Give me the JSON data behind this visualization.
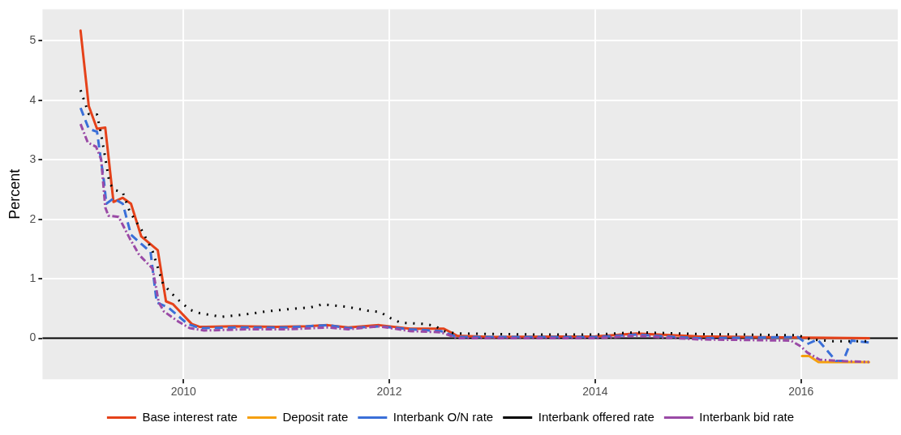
{
  "chart_data": {
    "type": "line",
    "ylabel": "Percent",
    "xlim": [
      2008.63,
      2016.94
    ],
    "xticks": [
      2010,
      2012,
      2014,
      2016
    ],
    "ylim": [
      -0.69,
      5.53
    ],
    "yticks": [
      0,
      1,
      2,
      3,
      4,
      5
    ],
    "grid": true,
    "legend": "bottom",
    "marker": "none",
    "ref_lines": [
      {
        "axis": "y",
        "value": 0,
        "color": "#000000"
      }
    ],
    "series": [
      {
        "name": "Base interest rate",
        "color": "#e5421a",
        "line_style": "solid",
        "x": [
          2009.0,
          2009.08,
          2009.16,
          2009.24,
          2009.32,
          2009.41,
          2009.49,
          2009.59,
          2009.75,
          2009.83,
          2009.9,
          2010.08,
          2010.16,
          2010.5,
          2010.9,
          2011.2,
          2011.4,
          2011.6,
          2011.9,
          2012.2,
          2012.53,
          2012.66,
          2013,
          2014,
          2014.4,
          2015,
          2016,
          2016.66
        ],
        "values": [
          5.17,
          3.9,
          3.52,
          3.54,
          2.29,
          2.36,
          2.26,
          1.71,
          1.48,
          0.62,
          0.57,
          0.24,
          0.19,
          0.2,
          0.19,
          0.2,
          0.22,
          0.18,
          0.22,
          0.16,
          0.16,
          0.04,
          0.02,
          0.03,
          0.08,
          0.03,
          0.01,
          0.0
        ]
      },
      {
        "name": "Deposit rate",
        "color": "#f5a00f",
        "line_style": "solid",
        "x": [
          2016.01,
          2016.08,
          2016.17,
          2016.66
        ],
        "values": [
          -0.3,
          -0.3,
          -0.4,
          -0.4
        ]
      },
      {
        "name": "Interbank O/N rate",
        "color": "#3a6fd8",
        "line_style": "dashed",
        "x": [
          2009.0,
          2009.08,
          2009.16,
          2009.23,
          2009.25,
          2009.32,
          2009.41,
          2009.49,
          2009.6,
          2009.68,
          2009.74,
          2009.85,
          2010.04,
          2010.16,
          2010.5,
          2011.0,
          2011.4,
          2011.6,
          2011.9,
          2012.2,
          2012.5,
          2012.66,
          2014,
          2014.4,
          2015,
          2015.97,
          2016.06,
          2016.16,
          2016.34,
          2016.41,
          2016.49,
          2016.66
        ],
        "values": [
          3.87,
          3.52,
          3.47,
          2.6,
          2.26,
          2.35,
          2.26,
          1.74,
          1.57,
          1.45,
          0.6,
          0.52,
          0.24,
          0.17,
          0.18,
          0.18,
          0.22,
          0.17,
          0.2,
          0.15,
          0.12,
          0.02,
          0.02,
          0.06,
          0.0,
          0.02,
          -0.1,
          -0.02,
          -0.38,
          -0.38,
          -0.04,
          -0.07
        ]
      },
      {
        "name": "Interbank offered rate",
        "color": "#000000",
        "line_style": "dotted",
        "x": [
          2009.0,
          2009.08,
          2009.16,
          2009.2,
          2009.24,
          2009.28,
          2009.32,
          2009.41,
          2009.48,
          2009.6,
          2009.7,
          2009.8,
          2009.88,
          2009.96,
          2010.06,
          2010.16,
          2010.37,
          2010.6,
          2010.8,
          2011.03,
          2011.24,
          2011.35,
          2011.58,
          2011.8,
          2011.91,
          2012.01,
          2012.11,
          2012.33,
          2012.44,
          2012.53,
          2012.64,
          2013.5,
          2014,
          2014.4,
          2015,
          2015.97,
          2016.1,
          2016.3,
          2016.66
        ],
        "values": [
          4.17,
          3.77,
          3.76,
          3.43,
          3.03,
          2.62,
          2.5,
          2.45,
          2.12,
          1.8,
          1.46,
          0.92,
          0.76,
          0.63,
          0.48,
          0.42,
          0.36,
          0.4,
          0.45,
          0.49,
          0.52,
          0.57,
          0.53,
          0.46,
          0.44,
          0.34,
          0.26,
          0.24,
          0.21,
          0.12,
          0.08,
          0.06,
          0.06,
          0.1,
          0.07,
          0.05,
          -0.02,
          -0.05,
          -0.05
        ]
      },
      {
        "name": "Interbank bid rate",
        "color": "#9a4aa6",
        "line_style": "dashdot",
        "x": [
          2009.0,
          2009.07,
          2009.15,
          2009.2,
          2009.24,
          2009.27,
          2009.37,
          2009.48,
          2009.57,
          2009.7,
          2009.76,
          2009.81,
          2009.95,
          2010.06,
          2010.2,
          2010.6,
          2011.0,
          2011.4,
          2011.6,
          2011.9,
          2012.2,
          2012.5,
          2012.66,
          2014,
          2014.4,
          2015,
          2015.9,
          2016.0,
          2016.06,
          2016.18,
          2016.34,
          2016.66
        ],
        "values": [
          3.6,
          3.29,
          3.22,
          3.01,
          2.2,
          2.06,
          2.04,
          1.67,
          1.4,
          1.17,
          0.6,
          0.45,
          0.28,
          0.17,
          0.13,
          0.15,
          0.15,
          0.18,
          0.15,
          0.2,
          0.12,
          0.1,
          0.0,
          0.0,
          0.04,
          -0.02,
          -0.04,
          -0.14,
          -0.24,
          -0.36,
          -0.38,
          -0.4
        ]
      }
    ]
  }
}
